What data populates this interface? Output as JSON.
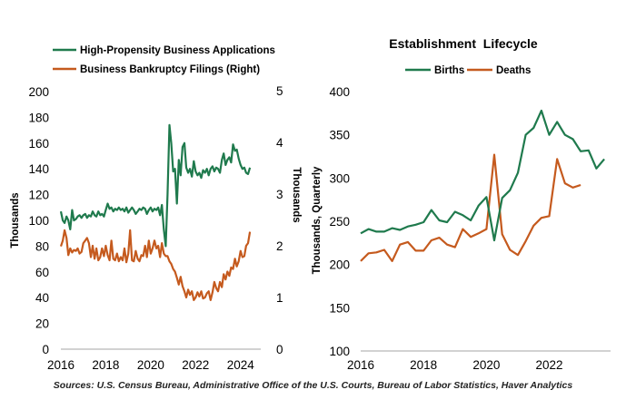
{
  "colors": {
    "green": "#1f7a4d",
    "orange": "#c55a1e"
  },
  "source_note": "Sources: U.S. Census Bureau, Administrative Office of the U.S. Courts, Bureau of Labor Statistics, Haver Analytics",
  "chart_data": [
    {
      "type": "line",
      "title": "",
      "legend_position": "top",
      "grid": false,
      "xlim": [
        2016,
        2024.9
      ],
      "x_ticks": [
        "2016",
        "2018",
        "2020",
        "2022",
        "2024"
      ],
      "ylim": [
        0,
        200
      ],
      "y_ticks": [
        "0",
        "20",
        "40",
        "60",
        "80",
        "100",
        "120",
        "140",
        "160",
        "180",
        "200"
      ],
      "ylabel": "Thousands",
      "ylim_right": [
        0,
        5
      ],
      "y_ticks_right": [
        "0",
        "1",
        "2",
        "3",
        "4",
        "5"
      ],
      "ylabel_right": "Thousands",
      "series": [
        {
          "name": "High-Propensity Business Applications",
          "axis": "left",
          "color": "green",
          "x": [
            2016.0,
            2016.083,
            2016.167,
            2016.25,
            2016.333,
            2016.417,
            2016.5,
            2016.583,
            2016.667,
            2016.75,
            2016.833,
            2016.917,
            2017.0,
            2017.083,
            2017.167,
            2017.25,
            2017.333,
            2017.417,
            2017.5,
            2017.583,
            2017.667,
            2017.75,
            2017.833,
            2017.917,
            2018.0,
            2018.083,
            2018.167,
            2018.25,
            2018.333,
            2018.417,
            2018.5,
            2018.583,
            2018.667,
            2018.75,
            2018.833,
            2018.917,
            2019.0,
            2019.083,
            2019.167,
            2019.25,
            2019.333,
            2019.417,
            2019.5,
            2019.583,
            2019.667,
            2019.75,
            2019.833,
            2019.917,
            2020.0,
            2020.083,
            2020.167,
            2020.25,
            2020.333,
            2020.417,
            2020.5,
            2020.583,
            2020.667,
            2020.75,
            2020.833,
            2020.917,
            2021.0,
            2021.083,
            2021.167,
            2021.25,
            2021.333,
            2021.417,
            2021.5,
            2021.583,
            2021.667,
            2021.75,
            2021.833,
            2021.917,
            2022.0,
            2022.083,
            2022.167,
            2022.25,
            2022.333,
            2022.417,
            2022.5,
            2022.583,
            2022.667,
            2022.75,
            2022.833,
            2022.917,
            2023.0,
            2023.083,
            2023.167,
            2023.25,
            2023.333,
            2023.417,
            2023.5,
            2023.583,
            2023.667,
            2023.75,
            2023.833,
            2023.917,
            2024.0,
            2024.083,
            2024.167,
            2024.25,
            2024.333,
            2024.417
          ],
          "values": [
            107,
            100,
            98,
            103,
            100,
            93,
            108,
            100,
            101,
            103,
            104,
            102,
            104,
            105,
            102,
            104,
            103,
            107,
            104,
            103,
            107,
            104,
            105,
            103,
            108,
            113,
            109,
            110,
            107,
            109,
            108,
            110,
            108,
            109,
            107,
            110,
            106,
            108,
            110,
            108,
            105,
            107,
            109,
            108,
            110,
            109,
            105,
            108,
            110,
            107,
            109,
            108,
            110,
            104,
            112,
            93,
            80,
            120,
            174,
            160,
            138,
            140,
            113,
            147,
            135,
            157,
            160,
            141,
            137,
            140,
            134,
            146,
            138,
            135,
            137,
            133,
            139,
            137,
            140,
            135,
            140,
            142,
            138,
            141,
            140,
            137,
            147,
            152,
            143,
            147,
            149,
            145,
            159,
            154,
            155,
            148,
            143,
            140,
            141,
            137,
            136,
            141
          ]
        },
        {
          "name": "Business Bankruptcy Filings (Right)",
          "axis": "right",
          "color": "orange",
          "x": [
            2016.0,
            2016.083,
            2016.167,
            2016.25,
            2016.333,
            2016.417,
            2016.5,
            2016.583,
            2016.667,
            2016.75,
            2016.833,
            2016.917,
            2017.0,
            2017.083,
            2017.167,
            2017.25,
            2017.333,
            2017.417,
            2017.5,
            2017.583,
            2017.667,
            2017.75,
            2017.833,
            2017.917,
            2018.0,
            2018.083,
            2018.167,
            2018.25,
            2018.333,
            2018.417,
            2018.5,
            2018.583,
            2018.667,
            2018.75,
            2018.833,
            2018.917,
            2019.0,
            2019.083,
            2019.167,
            2019.25,
            2019.333,
            2019.417,
            2019.5,
            2019.583,
            2019.667,
            2019.75,
            2019.833,
            2019.917,
            2020.0,
            2020.083,
            2020.167,
            2020.25,
            2020.333,
            2020.417,
            2020.5,
            2020.583,
            2020.667,
            2020.75,
            2020.833,
            2020.917,
            2021.0,
            2021.083,
            2021.167,
            2021.25,
            2021.333,
            2021.417,
            2021.5,
            2021.583,
            2021.667,
            2021.75,
            2021.833,
            2021.917,
            2022.0,
            2022.083,
            2022.167,
            2022.25,
            2022.333,
            2022.417,
            2022.5,
            2022.583,
            2022.667,
            2022.75,
            2022.833,
            2022.917,
            2023.0,
            2023.083,
            2023.167,
            2023.25,
            2023.333,
            2023.417,
            2023.5,
            2023.583,
            2023.667,
            2023.75,
            2023.833,
            2023.917,
            2024.0,
            2024.083,
            2024.167,
            2024.25,
            2024.333,
            2024.417
          ],
          "values": [
            1.99,
            2.1,
            2.3,
            2.15,
            1.82,
            1.95,
            1.87,
            1.92,
            1.9,
            1.95,
            1.85,
            1.88,
            2.05,
            2.1,
            2.15,
            2.05,
            1.78,
            2.0,
            1.75,
            1.95,
            1.72,
            1.78,
            1.95,
            1.8,
            2.0,
            1.82,
            1.72,
            2.1,
            1.75,
            1.72,
            1.85,
            1.7,
            1.78,
            1.72,
            1.95,
            1.68,
            1.85,
            2.3,
            1.72,
            1.7,
            1.9,
            1.75,
            1.7,
            1.82,
            1.8,
            2.0,
            1.78,
            2.1,
            1.85,
            1.95,
            2.1,
            1.95,
            2.0,
            1.78,
            2.05,
            1.85,
            1.8,
            1.8,
            1.7,
            1.65,
            1.55,
            1.5,
            1.38,
            1.25,
            1.4,
            1.22,
            1.12,
            1.0,
            1.15,
            1.05,
            1.12,
            0.95,
            1.0,
            1.1,
            1.02,
            1.12,
            0.98,
            1.0,
            1.08,
            1.12,
            0.95,
            1.1,
            1.3,
            1.18,
            1.12,
            1.3,
            1.2,
            1.45,
            1.35,
            1.5,
            1.42,
            1.58,
            1.55,
            1.75,
            1.6,
            1.7,
            1.9,
            1.78,
            1.8,
            2.0,
            2.05,
            2.27
          ]
        }
      ]
    },
    {
      "type": "line",
      "title": "Establishment  Lifecycle",
      "legend_position": "top",
      "grid": false,
      "xlim": [
        2016,
        2023.95
      ],
      "x_ticks": [
        "2016",
        "2018",
        "2020",
        "2022"
      ],
      "ylim": [
        100,
        400
      ],
      "y_ticks": [
        "100",
        "150",
        "200",
        "250",
        "300",
        "350",
        "400"
      ],
      "ylabel": "Thousands, Quarterly",
      "series": [
        {
          "name": "Births",
          "color": "green",
          "x": [
            2016.0,
            2016.25,
            2016.5,
            2016.75,
            2017.0,
            2017.25,
            2017.5,
            2017.75,
            2018.0,
            2018.25,
            2018.5,
            2018.75,
            2019.0,
            2019.25,
            2019.5,
            2019.75,
            2020.0,
            2020.25,
            2020.5,
            2020.75,
            2021.0,
            2021.25,
            2021.5,
            2021.75,
            2022.0,
            2022.25,
            2022.5,
            2022.75,
            2023.0,
            2023.25,
            2023.5,
            2023.75
          ],
          "values": [
            236,
            241,
            238,
            238,
            242,
            240,
            244,
            246,
            249,
            263,
            251,
            249,
            261,
            257,
            251,
            268,
            278,
            228,
            277,
            286,
            306,
            350,
            358,
            378,
            350,
            365,
            350,
            345,
            331,
            332,
            311,
            322
          ]
        },
        {
          "name": "Deaths",
          "color": "orange",
          "x": [
            2016.0,
            2016.25,
            2016.5,
            2016.75,
            2017.0,
            2017.25,
            2017.5,
            2017.75,
            2018.0,
            2018.25,
            2018.5,
            2018.75,
            2019.0,
            2019.25,
            2019.5,
            2019.75,
            2020.0,
            2020.25,
            2020.5,
            2020.75,
            2021.0,
            2021.25,
            2021.5,
            2021.75,
            2022.0,
            2022.25,
            2022.5,
            2022.75,
            2023.0
          ],
          "values": [
            204,
            213,
            214,
            217,
            204,
            223,
            226,
            216,
            216,
            228,
            231,
            223,
            220,
            241,
            232,
            236,
            241,
            327,
            235,
            217,
            211,
            227,
            245,
            254,
            256,
            322,
            294,
            289,
            292
          ]
        }
      ]
    }
  ]
}
